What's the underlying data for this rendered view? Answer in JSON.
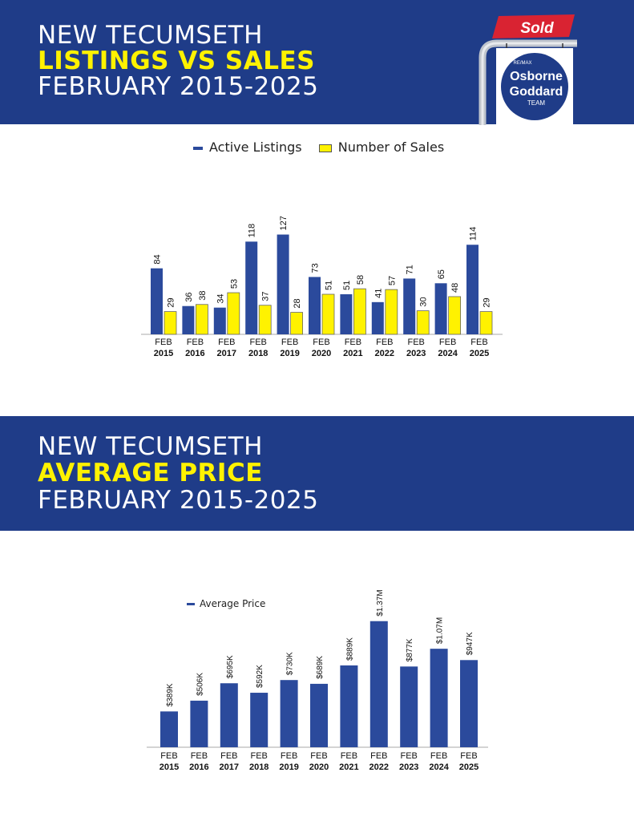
{
  "section1": {
    "title_line1": "NEW TECUMSETH",
    "title_line2": "LISTINGS VS SALES",
    "title_line3": "FEBRUARY 2015-2025"
  },
  "section2": {
    "title_line1": "NEW TECUMSETH",
    "title_line2": "AVERAGE PRICE",
    "title_line3": "FEBRUARY 2015-2025"
  },
  "logo": {
    "sold": "Sold",
    "brand_small": "RE/MAX",
    "name1": "Osborne",
    "name2": "Goddard",
    "name3": "TEAM"
  },
  "colors": {
    "navy": "#1f3c88",
    "bar_blue": "#2b4a9c",
    "yellow": "#fff200",
    "sold_red": "#d92332"
  },
  "chart_data": [
    {
      "type": "bar",
      "categories": [
        [
          "FEB",
          "2015"
        ],
        [
          "FEB",
          "2016"
        ],
        [
          "FEB",
          "2017"
        ],
        [
          "FEB",
          "2018"
        ],
        [
          "FEB",
          "2019"
        ],
        [
          "FEB",
          "2020"
        ],
        [
          "FEB",
          "2021"
        ],
        [
          "FEB",
          "2022"
        ],
        [
          "FEB",
          "2023"
        ],
        [
          "FEB",
          "2024"
        ],
        [
          "FEB",
          "2025"
        ]
      ],
      "series": [
        {
          "name": "Active Listings",
          "color": "#2b4a9c",
          "values": [
            84,
            36,
            34,
            118,
            127,
            73,
            51,
            41,
            71,
            65,
            114
          ]
        },
        {
          "name": "Number of Sales",
          "color": "#fff200",
          "values": [
            29,
            38,
            53,
            37,
            28,
            51,
            58,
            57,
            30,
            48,
            29
          ]
        }
      ],
      "legend": "top-center",
      "grid": false
    },
    {
      "type": "bar",
      "categories": [
        [
          "FEB",
          "2015"
        ],
        [
          "FEB",
          "2016"
        ],
        [
          "FEB",
          "2017"
        ],
        [
          "FEB",
          "2018"
        ],
        [
          "FEB",
          "2019"
        ],
        [
          "FEB",
          "2020"
        ],
        [
          "FEB",
          "2021"
        ],
        [
          "FEB",
          "2022"
        ],
        [
          "FEB",
          "2023"
        ],
        [
          "FEB",
          "2024"
        ],
        [
          "FEB",
          "2025"
        ]
      ],
      "series": [
        {
          "name": "Average Price",
          "color": "#2b4a9c",
          "values": [
            389,
            506,
            695,
            592,
            730,
            689,
            889,
            1370,
            877,
            1070,
            947
          ],
          "labels": [
            "$389K",
            "$506K",
            "$695K",
            "$592K",
            "$730K",
            "$689K",
            "$889K",
            "$1.37M",
            "$877K",
            "$1.07M",
            "$947K"
          ]
        }
      ],
      "legend": "top-left",
      "grid": false
    }
  ]
}
